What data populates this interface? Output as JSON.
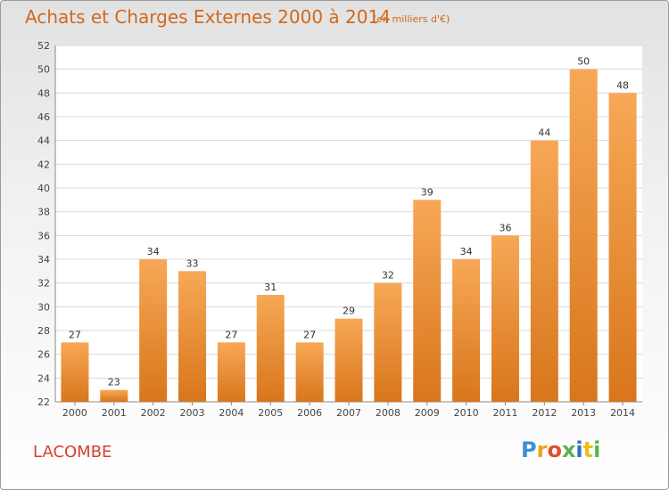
{
  "title": "Achats et Charges Externes 2000 à 2014",
  "subtitle": "(en milliers d'€)",
  "commune": "LACOMBE",
  "logo": {
    "letters": [
      "P",
      "r",
      "o",
      "x",
      "i",
      "t",
      "i"
    ],
    "colors": [
      "#3d8fd6",
      "#f2a21a",
      "#e84a2e",
      "#58b44b",
      "#2c6fc2",
      "#e8c21a",
      "#58b44b"
    ]
  },
  "colors": {
    "bar_light": "#f7a856",
    "bar_dark": "#d8761c",
    "title": "#d0691c",
    "commune": "#d8402e"
  },
  "chart_data": {
    "type": "bar",
    "categories": [
      "2000",
      "2001",
      "2002",
      "2003",
      "2004",
      "2005",
      "2006",
      "2007",
      "2008",
      "2009",
      "2010",
      "2011",
      "2012",
      "2013",
      "2014"
    ],
    "values": [
      27,
      23,
      34,
      33,
      27,
      31,
      27,
      29,
      32,
      39,
      34,
      36,
      44,
      50,
      48
    ],
    "data_labels": [
      "27",
      "23",
      "34",
      "33",
      "27",
      "31",
      "27",
      "29",
      "32",
      "39",
      "34",
      "36",
      "44",
      "50",
      "48"
    ],
    "ylim": [
      22,
      52
    ],
    "yticks": [
      "22",
      "24",
      "26",
      "28",
      "30",
      "32",
      "34",
      "36",
      "38",
      "40",
      "42",
      "44",
      "46",
      "48",
      "50",
      "52"
    ],
    "grid": true,
    "legend": "none",
    "xlabel": "",
    "ylabel": ""
  }
}
